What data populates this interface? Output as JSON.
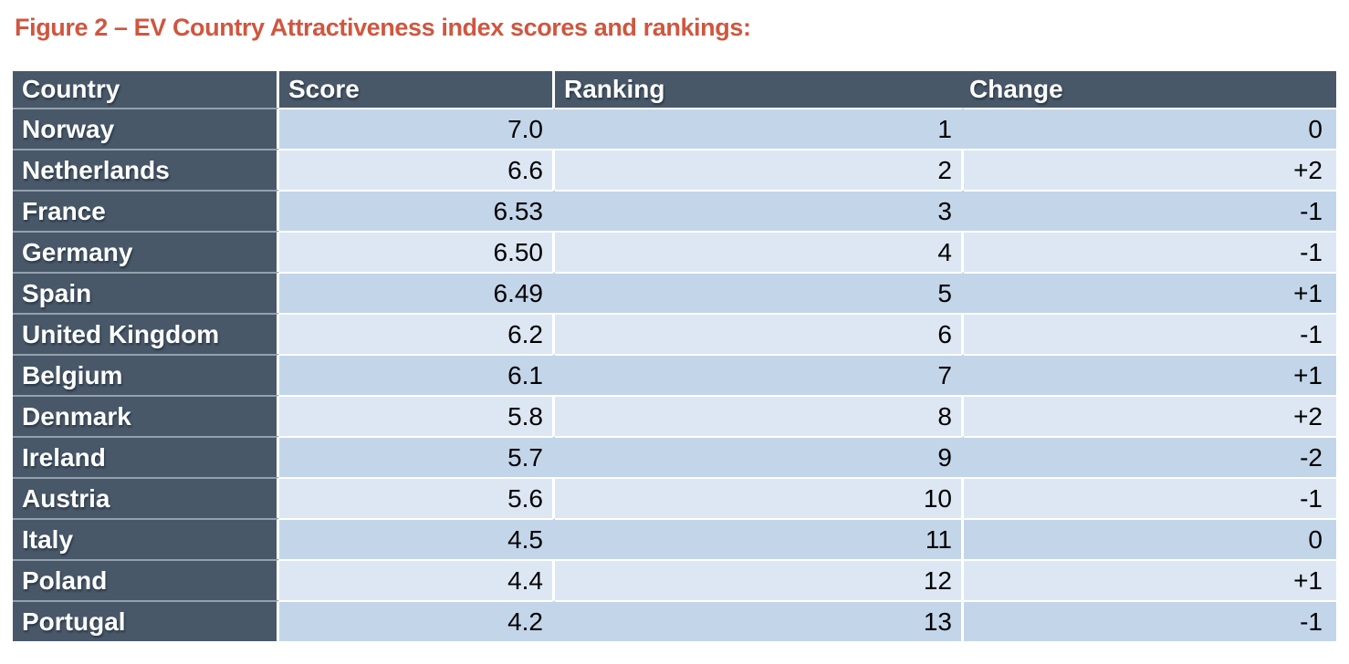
{
  "title": "Figure 2 – EV Country Attractiveness index scores and rankings:",
  "colors": {
    "accent": "#d0563f",
    "header_bg": "#485869",
    "row_medium": "#c3d5e9",
    "row_light": "#dce7f3",
    "dark_divider": "#93a0ae",
    "positive": "#3f9e3f",
    "negative": "#cf4a33",
    "neutral": "#000000"
  },
  "table": {
    "columns": [
      "Country",
      "Score",
      "Ranking",
      "Change"
    ],
    "rows": [
      {
        "country": "Norway",
        "score": "7.0",
        "ranking": "1",
        "change": "0"
      },
      {
        "country": "Netherlands",
        "score": "6.6",
        "ranking": "2",
        "change": "+2"
      },
      {
        "country": "France",
        "score": "6.53",
        "ranking": "3",
        "change": "-1"
      },
      {
        "country": "Germany",
        "score": "6.50",
        "ranking": "4",
        "change": "-1"
      },
      {
        "country": "Spain",
        "score": "6.49",
        "ranking": "5",
        "change": "+1"
      },
      {
        "country": "United Kingdom",
        "score": "6.2",
        "ranking": "6",
        "change": "-1"
      },
      {
        "country": "Belgium",
        "score": "6.1",
        "ranking": "7",
        "change": "+1"
      },
      {
        "country": "Denmark",
        "score": "5.8",
        "ranking": "8",
        "change": "+2"
      },
      {
        "country": "Ireland",
        "score": "5.7",
        "ranking": "9",
        "change": "-2"
      },
      {
        "country": "Austria",
        "score": "5.6",
        "ranking": "10",
        "change": "-1"
      },
      {
        "country": "Italy",
        "score": "4.5",
        "ranking": "11",
        "change": "0"
      },
      {
        "country": "Poland",
        "score": "4.4",
        "ranking": "12",
        "change": "+1"
      },
      {
        "country": "Portugal",
        "score": "4.2",
        "ranking": "13",
        "change": "-1"
      }
    ]
  }
}
